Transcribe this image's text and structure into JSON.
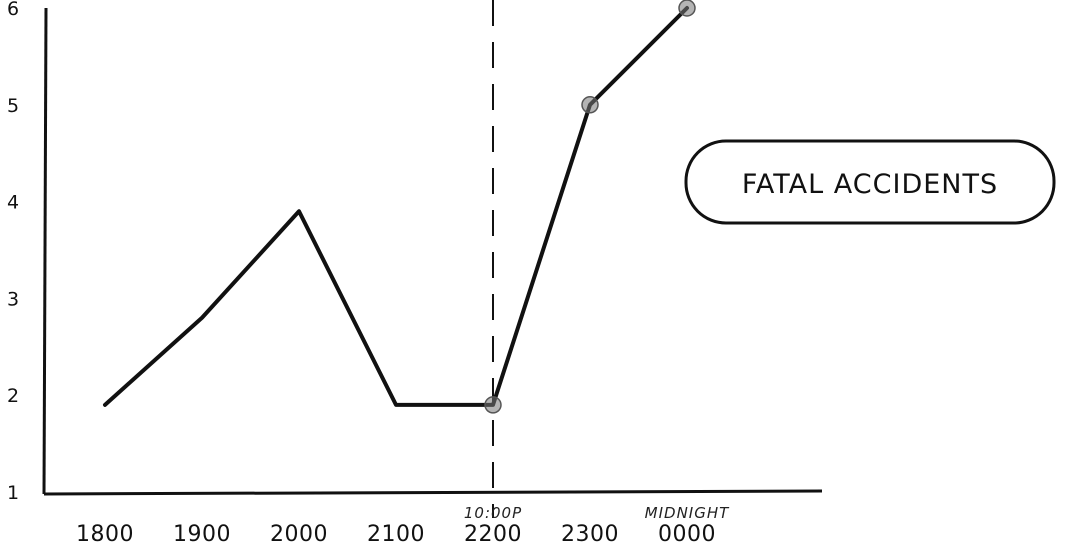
{
  "chart_data": {
    "type": "line",
    "x": [
      "1800",
      "1900",
      "2000",
      "2100",
      "2200",
      "2300",
      "0000"
    ],
    "y_ticks": [
      "1",
      "2",
      "3",
      "4",
      "5",
      "6"
    ],
    "ylim": [
      1,
      6
    ],
    "series": [
      {
        "name": "FATAL ACCIDENTS",
        "values": [
          1.9,
          2.8,
          3.9,
          1.9,
          1.9,
          5.0,
          6.0
        ]
      }
    ],
    "annotations": [
      {
        "text": "10:00P",
        "x": "2200"
      },
      {
        "text": "MIDNIGHT",
        "x": "0000"
      }
    ],
    "vline_at": "2200",
    "legend": "right",
    "grid": false,
    "colors": {
      "line": "#111111",
      "marker": "#777777"
    }
  }
}
